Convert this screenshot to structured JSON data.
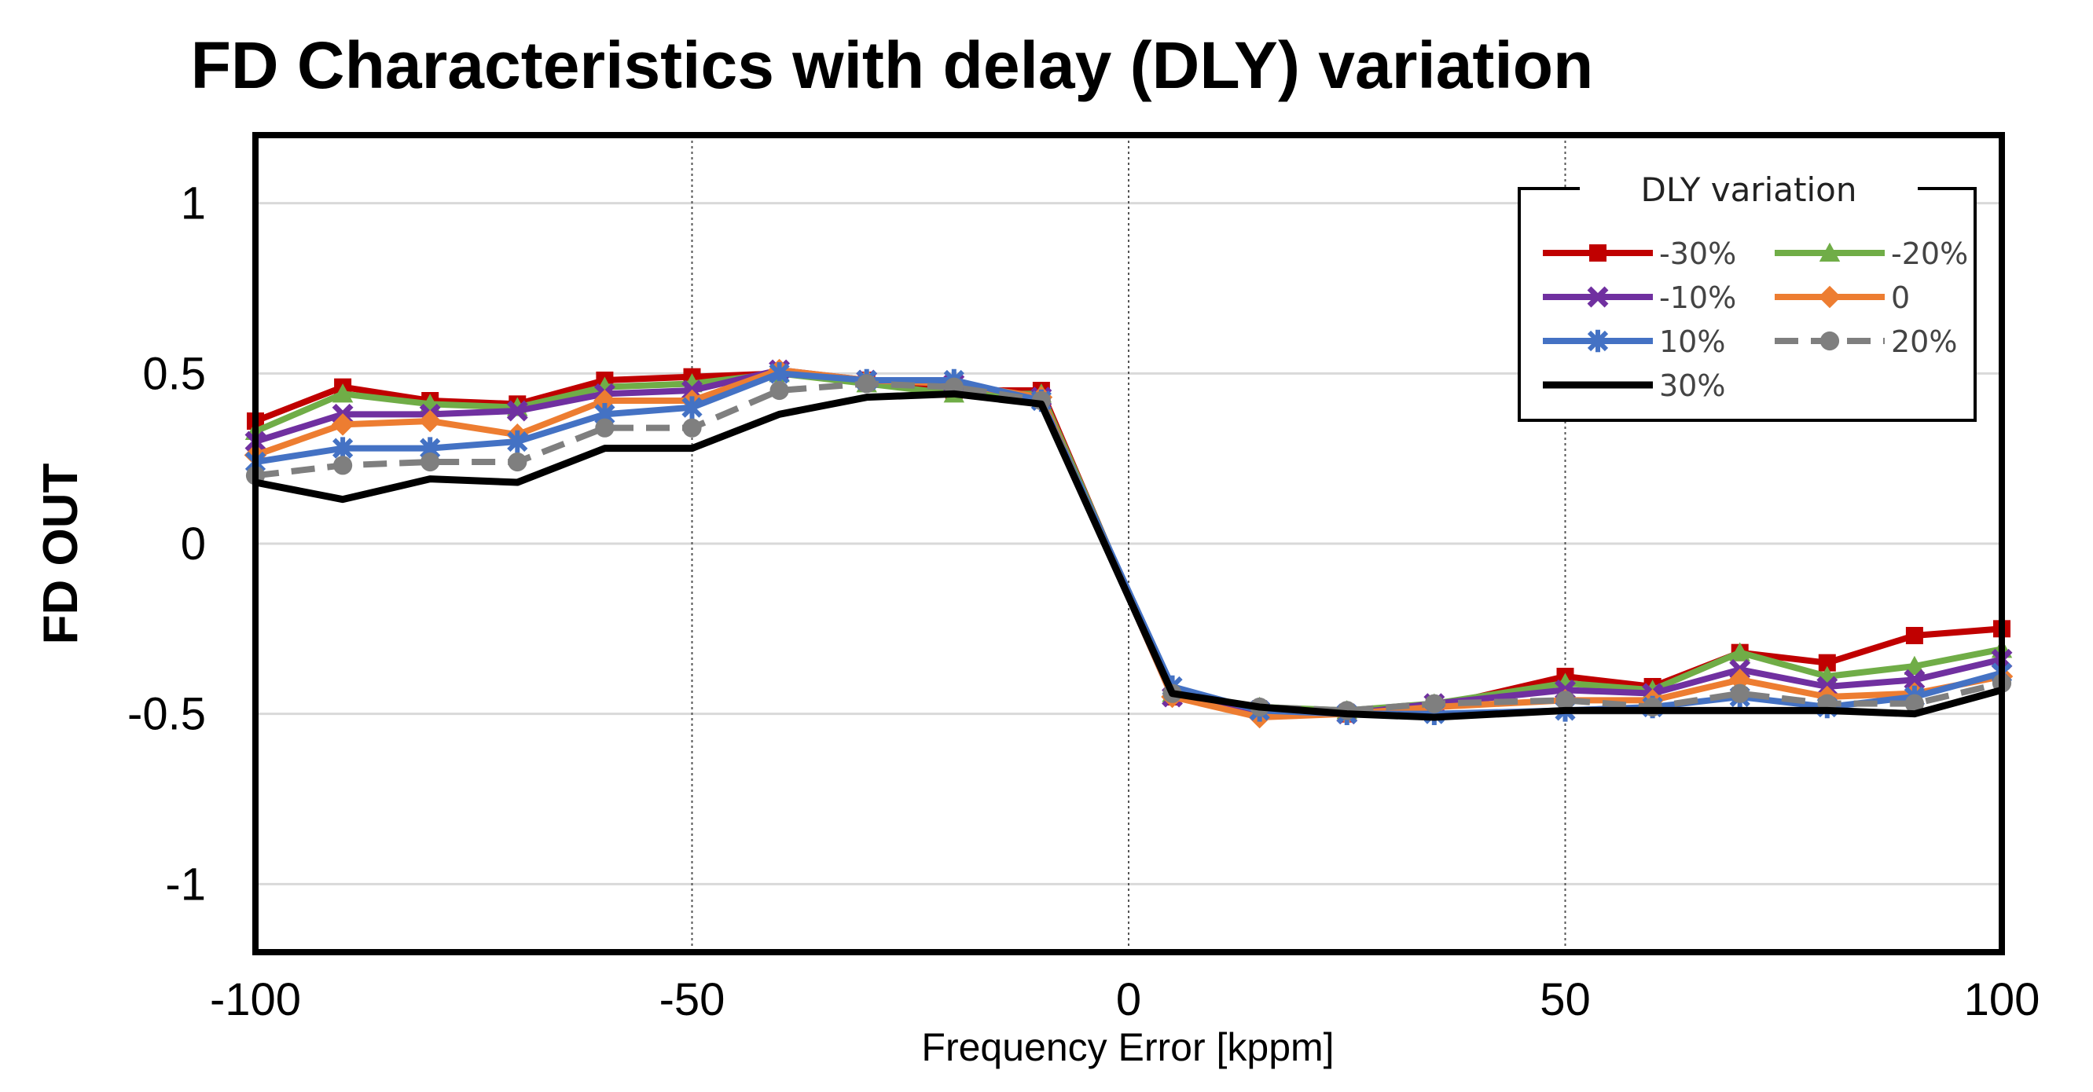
{
  "chart_data": {
    "type": "line",
    "title": "FD Characteristics with delay (DLY) variation",
    "xlabel": "Frequency Error [kppm]",
    "ylabel": "FD OUT",
    "xlim": [
      -100,
      100
    ],
    "ylim": [
      -1.2,
      1.2
    ],
    "xticks": [
      "-100",
      "-50",
      "0",
      "50",
      "100"
    ],
    "xtick_values": [
      -100,
      -50,
      0,
      50,
      100
    ],
    "yticks": [
      "1",
      "0.5",
      "0",
      "-0.5",
      "-1"
    ],
    "ytick_values": [
      1,
      0.5,
      0,
      -0.5,
      -1
    ],
    "grid": "horizontal solid gridlines; vertical dotted gridlines at -50, 0, 50",
    "legend_title": "DLY variation",
    "legend_position": "top-right",
    "x": [
      -100,
      -90,
      -80,
      -70,
      -60,
      -50,
      -40,
      -30,
      -20,
      -10,
      5,
      15,
      25,
      35,
      50,
      60,
      70,
      80,
      90,
      100
    ],
    "series": [
      {
        "name": "-30%",
        "color": "#c00000",
        "marker": "square",
        "dash": "solid",
        "values": [
          0.36,
          0.46,
          0.42,
          0.41,
          0.48,
          0.49,
          0.5,
          0.48,
          0.45,
          0.45,
          -0.45,
          -0.49,
          -0.5,
          -0.48,
          -0.39,
          -0.42,
          -0.32,
          -0.35,
          -0.27,
          -0.25
        ]
      },
      {
        "name": "-20%",
        "color": "#70ad47",
        "marker": "triangle",
        "dash": "solid",
        "values": [
          0.33,
          0.44,
          0.41,
          0.4,
          0.46,
          0.47,
          0.5,
          0.47,
          0.44,
          0.44,
          -0.44,
          -0.48,
          -0.49,
          -0.47,
          -0.41,
          -0.43,
          -0.32,
          -0.39,
          -0.36,
          -0.31
        ]
      },
      {
        "name": "-10%",
        "color": "#7030a0",
        "marker": "x",
        "dash": "solid",
        "values": [
          0.3,
          0.38,
          0.38,
          0.39,
          0.44,
          0.45,
          0.51,
          0.48,
          0.47,
          0.43,
          -0.45,
          -0.49,
          -0.5,
          -0.47,
          -0.43,
          -0.44,
          -0.37,
          -0.42,
          -0.4,
          -0.34
        ]
      },
      {
        "name": "0",
        "color": "#ed7d31",
        "marker": "diamond",
        "dash": "solid",
        "values": [
          0.26,
          0.35,
          0.36,
          0.32,
          0.42,
          0.42,
          0.51,
          0.48,
          0.47,
          0.43,
          -0.45,
          -0.51,
          -0.5,
          -0.48,
          -0.46,
          -0.46,
          -0.4,
          -0.45,
          -0.44,
          -0.39
        ]
      },
      {
        "name": "10%",
        "color": "#4472c4",
        "marker": "star",
        "dash": "solid",
        "values": [
          0.24,
          0.28,
          0.28,
          0.3,
          0.38,
          0.4,
          0.5,
          0.48,
          0.48,
          0.42,
          -0.42,
          -0.49,
          -0.5,
          -0.5,
          -0.49,
          -0.48,
          -0.45,
          -0.48,
          -0.45,
          -0.38
        ]
      },
      {
        "name": "20%",
        "color": "#7f7f7f",
        "marker": "circle",
        "dash": "dashed",
        "values": [
          0.2,
          0.23,
          0.24,
          0.24,
          0.34,
          0.34,
          0.45,
          0.47,
          0.46,
          0.42,
          -0.44,
          -0.48,
          -0.49,
          -0.47,
          -0.46,
          -0.48,
          -0.44,
          -0.47,
          -0.47,
          -0.41
        ]
      },
      {
        "name": "30%",
        "color": "#000000",
        "marker": "none",
        "dash": "solid",
        "values": [
          0.18,
          0.13,
          0.19,
          0.18,
          0.28,
          0.28,
          0.38,
          0.43,
          0.44,
          0.41,
          -0.44,
          -0.48,
          -0.5,
          -0.51,
          -0.49,
          -0.49,
          -0.49,
          -0.49,
          -0.5,
          -0.43
        ]
      }
    ]
  }
}
